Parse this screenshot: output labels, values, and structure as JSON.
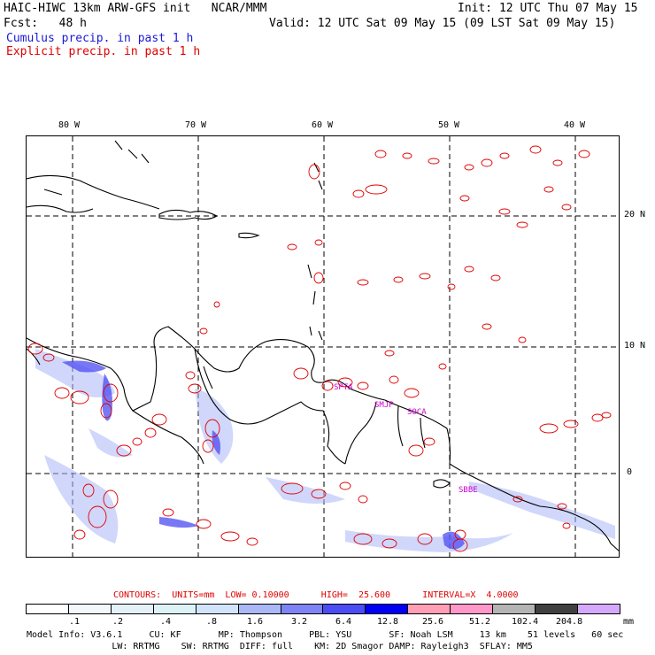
{
  "header": {
    "left_line1": "HAIC-HIWC 13km ARW-GFS init   NCAR/MMM",
    "right_line1": "Init: 12 UTC Thu 07 May 15",
    "left_line2": "Fcst:   48 h",
    "right_line2": "Valid: 12 UTC Sat 09 May 15 (09 LST Sat 09 May 15)",
    "line3": "Cumulus precip. in past 1 h",
    "line4": "Explicit precip. in past 1 h"
  },
  "colors": {
    "cumulus": "#1a1ad6",
    "explicit": "#e00000",
    "station": "#cc00cc"
  },
  "map": {
    "lon_labels": [
      "80 W",
      "70 W",
      "60 W",
      "50 W",
      "40 W"
    ],
    "lat_labels": [
      "20 N",
      "10 N",
      "0"
    ],
    "stations": [
      "SPTA",
      "SMJP",
      "SOCA",
      "SBBE"
    ]
  },
  "contours_line": {
    "label": "CONTOURS:  UNITS=mm  LOW= 0.10000      HIGH=  25.600      INTERVAL=X  4.0000"
  },
  "legend": {
    "colors": [
      "#ffffff",
      "#f2f8fc",
      "#e4f1fa",
      "#dcf2f8",
      "#d2e4fb",
      "#aab8f8",
      "#7e84f4",
      "#4c4cf4",
      "#0000f6",
      "#ff9eb4",
      "#ff98c8",
      "#b4b4b4",
      "#404040",
      "#d4a8fc"
    ],
    "ticks": [
      ".1",
      ".2",
      ".4",
      ".8",
      "1.6",
      "3.2",
      "6.4",
      "12.8",
      "25.6",
      "51.2",
      "102.4",
      "204.8"
    ],
    "unit": "mm"
  },
  "model_info": {
    "line1": "Model Info: V3.6.1     CU: KF       MP: Thompson     PBL: YSU       SF: Noah LSM     13 km    51 levels   60 sec",
    "line2": "                LW: RRTMG    SW: RRTMG  DIFF: full    KM: 2D Smagor DAMP: Rayleigh3  SFLAY: MM5"
  }
}
